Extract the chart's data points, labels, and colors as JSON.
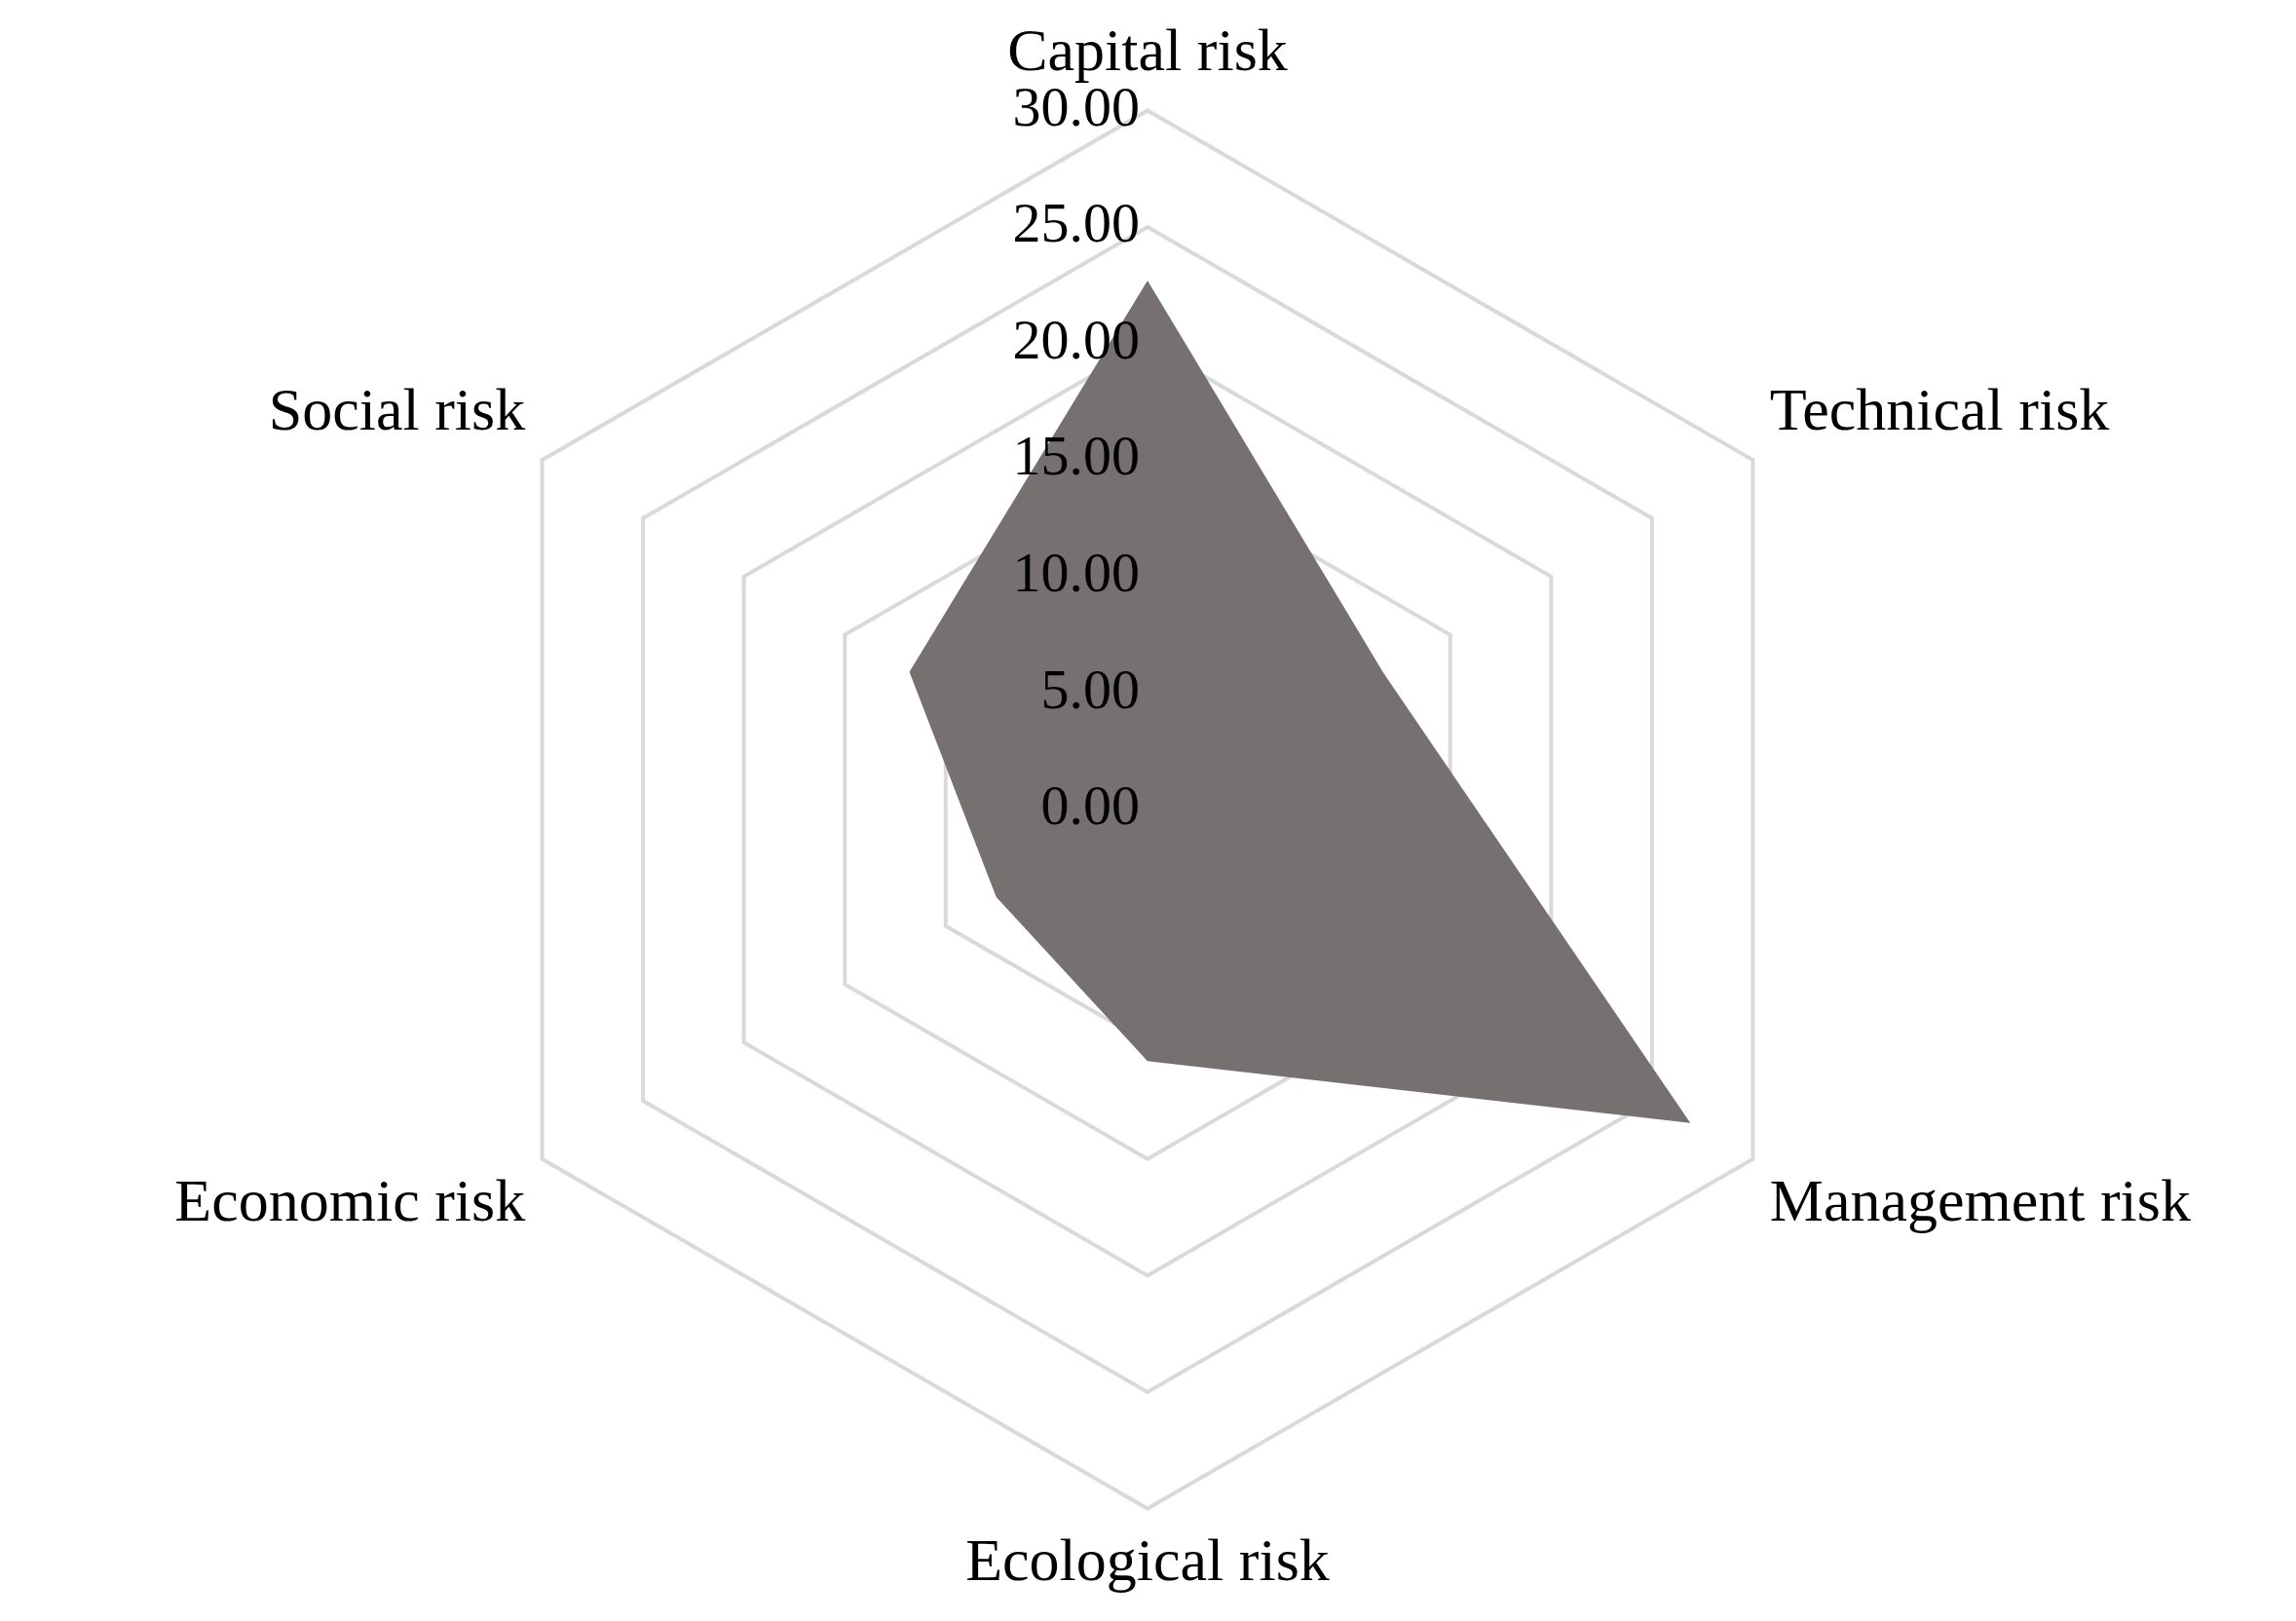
{
  "chart_data": {
    "type": "radar",
    "categories": [
      "Capital risk",
      "Technical risk",
      "Management risk",
      "Ecological risk",
      "Economic risk",
      "Social risk"
    ],
    "series": [
      {
        "color": "#767170",
        "values": [
          22.7,
          11.7,
          26.9,
          10.8,
          7.5,
          11.8
        ]
      }
    ],
    "ylim": [
      0,
      30
    ],
    "yticks": [
      {
        "value": 0,
        "label": "0.00"
      },
      {
        "value": 5,
        "label": "5.00"
      },
      {
        "value": 10,
        "label": "10.00"
      },
      {
        "value": 15,
        "label": "15.00"
      },
      {
        "value": 20,
        "label": "20.00"
      },
      {
        "value": 25,
        "label": "25.00"
      },
      {
        "value": 30,
        "label": "30.00"
      }
    ],
    "grid": true,
    "legend": false
  }
}
